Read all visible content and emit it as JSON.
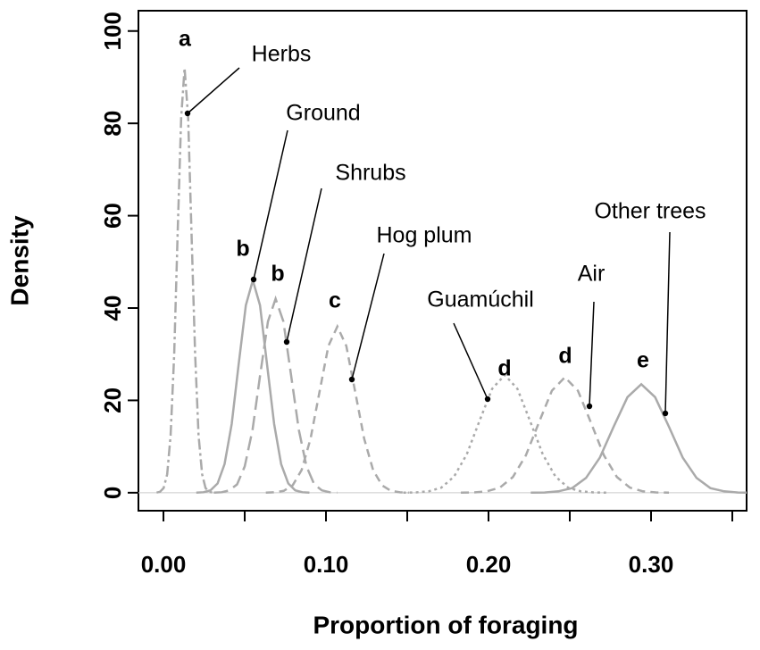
{
  "chart_data": {
    "type": "line",
    "xlabel": "Proportion of foraging",
    "ylabel": "Density",
    "xlim": [
      -0.0154,
      0.3588
    ],
    "ylim": [
      -3.9,
      104.4
    ],
    "xticks": [
      {
        "value": 0,
        "label": "0.00"
      },
      {
        "value": 0.1,
        "label": "0.10"
      },
      {
        "value": 0.2,
        "label": "0.20"
      },
      {
        "value": 0.3,
        "label": "0.30"
      }
    ],
    "xminor_ticks": [
      0.05,
      0.15,
      0.25,
      0.35
    ],
    "yticks": [
      0,
      20,
      40,
      60,
      80,
      100
    ],
    "reference_line": 0,
    "series": [
      {
        "name": "Herbs",
        "group": "a",
        "color": "#aaaaaa",
        "linestyle": "dashdot",
        "x": [
          -0.0042,
          -0.0021,
          0.0001,
          0.0023,
          0.0044,
          0.0066,
          0.0087,
          0.0109,
          0.013,
          0.0152,
          0.0173,
          0.0195,
          0.0216,
          0.0238,
          0.0259,
          0.0281,
          0.0302
        ],
        "values": [
          0.03,
          0.2,
          1.0,
          4.0,
          12.4,
          29.9,
          55.8,
          81.2,
          92,
          81.2,
          55.8,
          29.9,
          12.4,
          4.0,
          1.0,
          0.2,
          0.03
        ]
      },
      {
        "name": "Ground",
        "group": "b",
        "color": "#aaaaaa",
        "linestyle": "solid",
        "x": [
          0.0202,
          0.0246,
          0.0289,
          0.0333,
          0.0376,
          0.042,
          0.0463,
          0.0507,
          0.055,
          0.0594,
          0.0637,
          0.0681,
          0.0724,
          0.0768,
          0.0811,
          0.0855,
          0.0898
        ],
        "values": [
          0.01,
          0.1,
          0.5,
          2.0,
          6.2,
          14.9,
          27.9,
          40.6,
          46,
          40.6,
          27.9,
          14.9,
          6.2,
          2.0,
          0.5,
          0.1,
          0.01
        ]
      },
      {
        "name": "Shrubs",
        "group": "b",
        "color": "#aaaaaa",
        "linestyle": "longdash",
        "x": [
          0.031,
          0.0358,
          0.0405,
          0.0453,
          0.05,
          0.0548,
          0.0595,
          0.0643,
          0.069,
          0.0738,
          0.0785,
          0.0833,
          0.088,
          0.0928,
          0.0975,
          0.1023,
          0.107
        ],
        "values": [
          0.01,
          0.1,
          0.5,
          1.8,
          5.7,
          13.6,
          25.5,
          37.1,
          42,
          37.1,
          25.5,
          13.6,
          5.7,
          1.8,
          0.5,
          0.1,
          0.01
        ]
      },
      {
        "name": "Hog plum",
        "group": "c",
        "color": "#aaaaaa",
        "linestyle": "dashed",
        "x": [
          0.063,
          0.0685,
          0.074,
          0.0795,
          0.085,
          0.0905,
          0.096,
          0.1015,
          0.107,
          0.1125,
          0.118,
          0.1235,
          0.129,
          0.1345,
          0.14,
          0.1455,
          0.151
        ],
        "values": [
          0.01,
          0.1,
          0.4,
          1.6,
          4.9,
          11.7,
          21.8,
          31.8,
          36,
          31.8,
          21.8,
          11.7,
          4.9,
          1.6,
          0.4,
          0.1,
          0.01
        ]
      },
      {
        "name": "Guamúchil",
        "group": "d",
        "color": "#aaaaaa",
        "linestyle": "dotted",
        "x": [
          0.1476,
          0.1554,
          0.1632,
          0.171,
          0.1788,
          0.1866,
          0.1944,
          0.2022,
          0.21,
          0.2178,
          0.2256,
          0.2334,
          0.2412,
          0.249,
          0.2568,
          0.2646,
          0.2724
        ],
        "values": [
          0.01,
          0.06,
          0.3,
          1.1,
          3.5,
          8.3,
          15.5,
          22.5,
          25.5,
          22.5,
          15.5,
          8.3,
          3.5,
          1.1,
          0.3,
          0.06,
          0.01
        ]
      },
      {
        "name": "Air",
        "group": "d",
        "color": "#aaaaaa",
        "linestyle": "dashed",
        "x": [
          0.183,
          0.191,
          0.199,
          0.207,
          0.215,
          0.223,
          0.231,
          0.239,
          0.247,
          0.255,
          0.263,
          0.271,
          0.279,
          0.287,
          0.295,
          0.303,
          0.311
        ],
        "values": [
          0.01,
          0.06,
          0.3,
          1.1,
          3.4,
          8.1,
          15.2,
          22.1,
          25,
          22.1,
          15.2,
          8.1,
          3.4,
          1.1,
          0.3,
          0.06,
          0.01
        ]
      },
      {
        "name": "Other trees",
        "group": "e",
        "color": "#aaaaaa",
        "linestyle": "solid",
        "x": [
          0.226,
          0.2345,
          0.243,
          0.2515,
          0.26,
          0.2685,
          0.277,
          0.2855,
          0.294,
          0.3025,
          0.311,
          0.3195,
          0.328,
          0.3365,
          0.345,
          0.3535,
          0.362
        ],
        "values": [
          0.01,
          0.05,
          0.3,
          1.0,
          3.2,
          7.6,
          14.3,
          20.7,
          23.5,
          20.7,
          14.3,
          7.6,
          3.2,
          1.0,
          0.3,
          0.05,
          0.01
        ]
      }
    ]
  }
}
